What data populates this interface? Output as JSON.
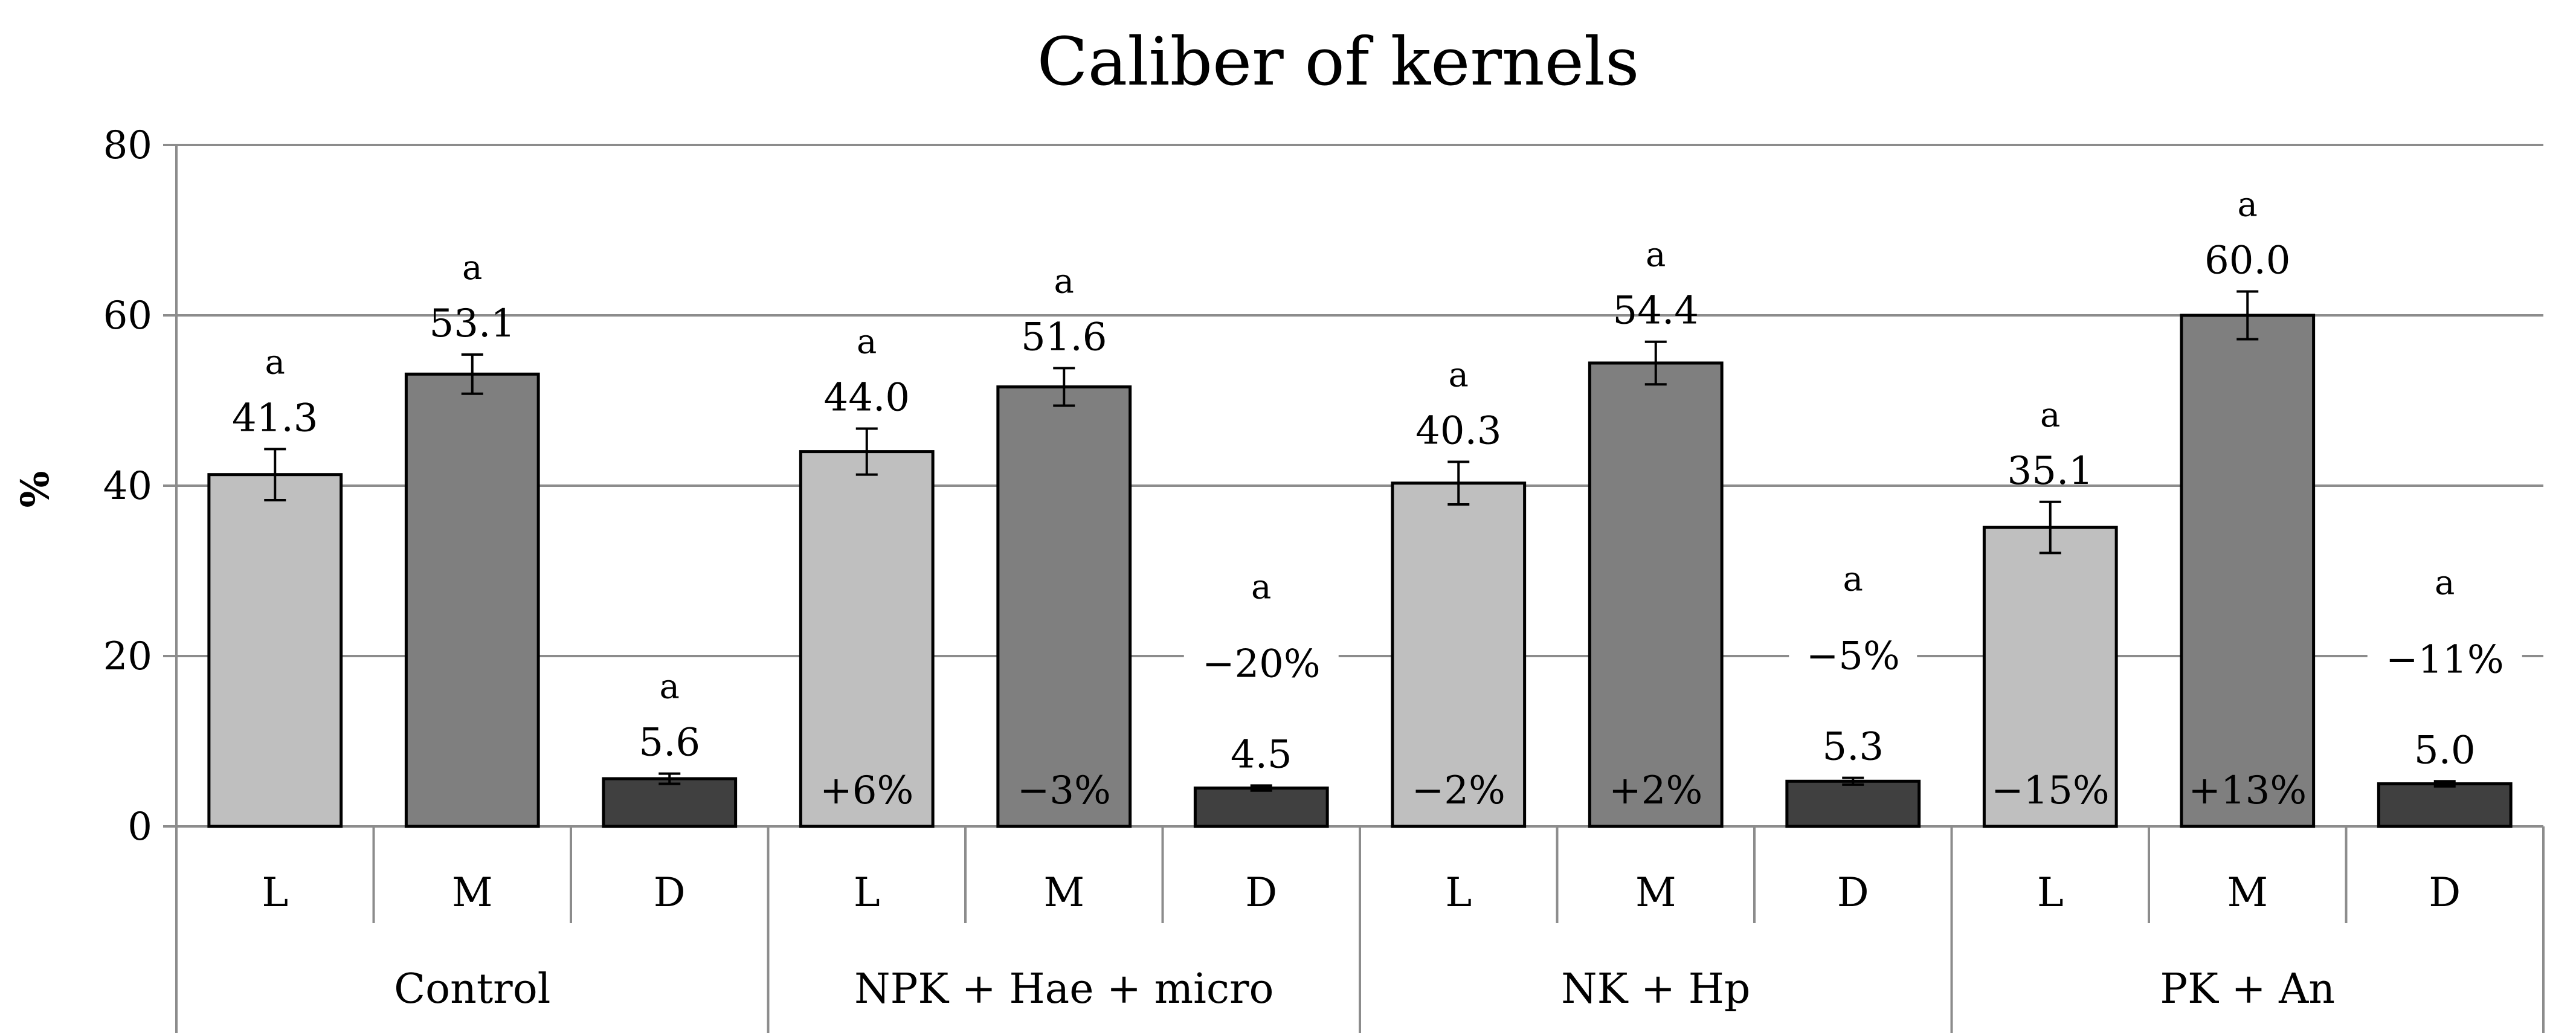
{
  "chart_data": {
    "type": "bar",
    "title": "Caliber of kernels",
    "ylabel": "%",
    "xlabel": "",
    "ylim": [
      0,
      80
    ],
    "yticks": [
      0,
      20,
      40,
      60,
      80
    ],
    "grid": true,
    "legend": "none",
    "colors": {
      "L": "#bfbfbf",
      "M": "#7f7f7f",
      "D": "#404040"
    },
    "groups": [
      {
        "name": "Control",
        "bars": [
          {
            "category": "L",
            "value": 41.3,
            "label": "41.3",
            "error": 3.0,
            "sig": "a",
            "change": ""
          },
          {
            "category": "M",
            "value": 53.1,
            "label": "53.1",
            "error": 2.3,
            "sig": "a",
            "change": ""
          },
          {
            "category": "D",
            "value": 5.6,
            "label": "5.6",
            "error": 0.6,
            "sig": "a",
            "change": ""
          }
        ]
      },
      {
        "name": "NPK + Hae + micro",
        "bars": [
          {
            "category": "L",
            "value": 44.0,
            "label": "44.0",
            "error": 2.7,
            "sig": "a",
            "change": "+6%"
          },
          {
            "category": "M",
            "value": 51.6,
            "label": "51.6",
            "error": 2.2,
            "sig": "a",
            "change": "−3%"
          },
          {
            "category": "D",
            "value": 4.5,
            "label": "4.5",
            "error": 0.3,
            "sig": "a",
            "change": "−20%"
          }
        ]
      },
      {
        "name": "NK + Hp",
        "bars": [
          {
            "category": "L",
            "value": 40.3,
            "label": "40.3",
            "error": 2.5,
            "sig": "a",
            "change": "−2%"
          },
          {
            "category": "M",
            "value": 54.4,
            "label": "54.4",
            "error": 2.5,
            "sig": "a",
            "change": "+2%"
          },
          {
            "category": "D",
            "value": 5.3,
            "label": "5.3",
            "error": 0.4,
            "sig": "a",
            "change": "−5%"
          }
        ]
      },
      {
        "name": "PK + An",
        "bars": [
          {
            "category": "L",
            "value": 35.1,
            "label": "35.1",
            "error": 3.0,
            "sig": "a",
            "change": "−15%"
          },
          {
            "category": "M",
            "value": 60.0,
            "label": "60.0",
            "error": 2.8,
            "sig": "a",
            "change": "+13%"
          },
          {
            "category": "D",
            "value": 5.0,
            "label": "5.0",
            "error": 0.3,
            "sig": "a",
            "change": "−11%"
          }
        ]
      }
    ]
  }
}
